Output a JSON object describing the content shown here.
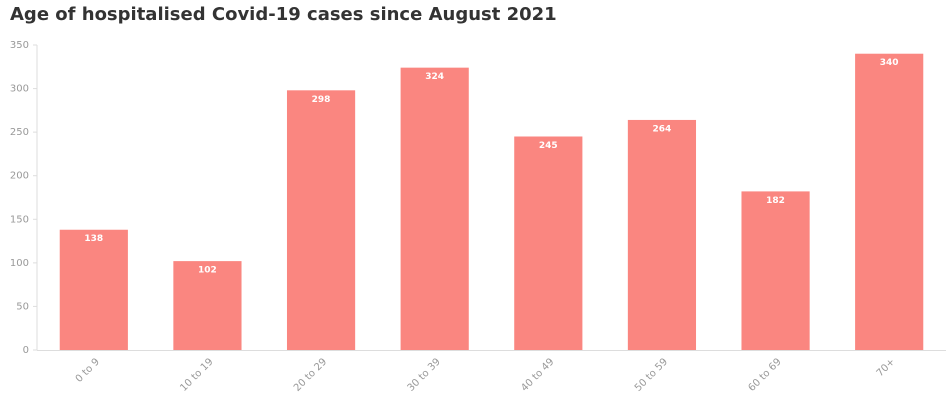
{
  "chart_data": {
    "type": "bar",
    "title": "Age of hospitalised Covid-19 cases since August 2021",
    "categories": [
      "0 to 9",
      "10 to 19",
      "20 to 29",
      "30 to 39",
      "40 to 49",
      "50 to 59",
      "60 to 69",
      "70+"
    ],
    "values": [
      138,
      102,
      298,
      324,
      245,
      264,
      182,
      340
    ],
    "color": "#fa8680",
    "ylim": [
      0,
      350
    ],
    "yticks": [
      0,
      50,
      100,
      150,
      200,
      250,
      300,
      350
    ],
    "grid": false
  }
}
